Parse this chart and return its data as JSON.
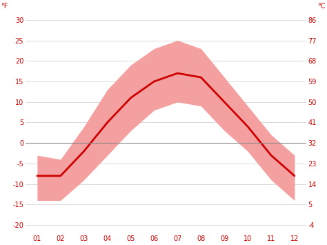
{
  "months": [
    1,
    2,
    3,
    4,
    5,
    6,
    7,
    8,
    9,
    10,
    11,
    12
  ],
  "month_labels": [
    "01",
    "02",
    "03",
    "04",
    "05",
    "06",
    "07",
    "08",
    "09",
    "10",
    "11",
    "12"
  ],
  "mean_temp": [
    -8,
    -8,
    -2,
    5,
    11,
    15,
    17,
    16,
    10,
    4,
    -3,
    -8
  ],
  "max_temp": [
    -3,
    -4,
    4,
    13,
    19,
    23,
    25,
    23,
    16,
    9,
    2,
    -3
  ],
  "min_temp": [
    -14,
    -14,
    -9,
    -3,
    3,
    8,
    10,
    9,
    3,
    -2,
    -9,
    -14
  ],
  "y_ticks_right": [
    "30",
    "25",
    "20",
    "15",
    "10",
    "5",
    "0",
    "-5",
    "-10",
    "-15",
    "-20"
  ],
  "y_ticks_left": [
    "86",
    "77",
    "68",
    "59",
    "50",
    "41",
    "32",
    "23",
    "14",
    "5",
    "-4"
  ],
  "y_tick_vals": [
    30,
    25,
    20,
    15,
    10,
    5,
    0,
    -5,
    -10,
    -15,
    -20
  ],
  "ylim": [
    -22,
    32
  ],
  "zero_line_y": 0,
  "band_color": "#f4a0a0",
  "line_color": "#cc0000",
  "background_color": "#ffffff",
  "grid_color": "#cccccc",
  "text_color": "#cc0000",
  "zero_line_color": "#888888"
}
